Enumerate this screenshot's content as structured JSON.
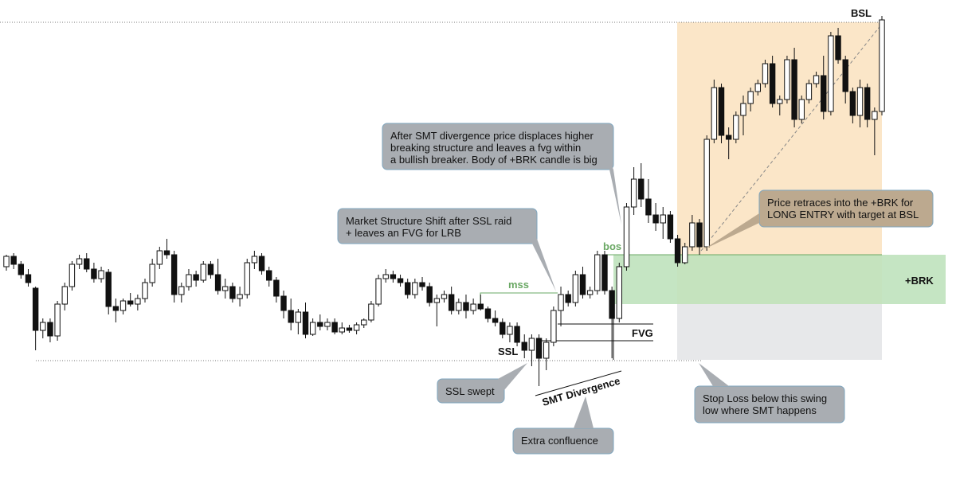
{
  "chart_data": {
    "type": "candlestick",
    "ylim": [
      0,
      600
    ],
    "xlim": [
      0,
      120
    ],
    "up_color": "#ffffff",
    "down_color": "#111111",
    "series": [
      {
        "values": [
          [
            265,
            280,
            260,
            278
          ],
          [
            278,
            282,
            262,
            268
          ],
          [
            268,
            272,
            250,
            255
          ],
          [
            255,
            262,
            240,
            245
          ],
          [
            238,
            240,
            160,
            185
          ],
          [
            185,
            200,
            175,
            195
          ],
          [
            195,
            200,
            170,
            178
          ],
          [
            178,
            222,
            172,
            218
          ],
          [
            218,
            245,
            210,
            240
          ],
          [
            240,
            272,
            235,
            268
          ],
          [
            268,
            280,
            262,
            275
          ],
          [
            275,
            282,
            258,
            262
          ],
          [
            262,
            270,
            245,
            250
          ],
          [
            250,
            265,
            245,
            260
          ],
          [
            258,
            262,
            205,
            215
          ],
          [
            215,
            225,
            195,
            210
          ],
          [
            210,
            225,
            205,
            222
          ],
          [
            222,
            232,
            215,
            218
          ],
          [
            218,
            230,
            210,
            225
          ],
          [
            225,
            250,
            220,
            245
          ],
          [
            245,
            275,
            240,
            268
          ],
          [
            268,
            290,
            262,
            285
          ],
          [
            285,
            300,
            275,
            280
          ],
          [
            280,
            285,
            220,
            230
          ],
          [
            230,
            245,
            220,
            240
          ],
          [
            240,
            262,
            235,
            255
          ],
          [
            255,
            260,
            240,
            248
          ],
          [
            248,
            272,
            245,
            268
          ],
          [
            268,
            272,
            250,
            255
          ],
          [
            255,
            275,
            230,
            235
          ],
          [
            235,
            250,
            225,
            240
          ],
          [
            240,
            245,
            220,
            225
          ],
          [
            225,
            240,
            215,
            230
          ],
          [
            230,
            275,
            225,
            270
          ],
          [
            270,
            285,
            262,
            278
          ],
          [
            278,
            282,
            255,
            260
          ],
          [
            260,
            265,
            240,
            248
          ],
          [
            248,
            252,
            220,
            228
          ],
          [
            228,
            235,
            200,
            210
          ],
          [
            210,
            225,
            185,
            195
          ],
          [
            195,
            212,
            180,
            208
          ],
          [
            208,
            220,
            175,
            180
          ],
          [
            180,
            200,
            178,
            195
          ],
          [
            195,
            205,
            185,
            190
          ],
          [
            190,
            200,
            185,
            195
          ],
          [
            195,
            200,
            180,
            183
          ],
          [
            183,
            195,
            180,
            188
          ],
          [
            188,
            192,
            182,
            185
          ],
          [
            185,
            195,
            180,
            192
          ],
          [
            192,
            200,
            188,
            198
          ],
          [
            198,
            222,
            195,
            218
          ],
          [
            218,
            255,
            215,
            250
          ],
          [
            250,
            262,
            245,
            255
          ],
          [
            255,
            260,
            245,
            250
          ],
          [
            250,
            255,
            240,
            245
          ],
          [
            245,
            250,
            225,
            230
          ],
          [
            230,
            250,
            225,
            245
          ],
          [
            245,
            252,
            235,
            240
          ],
          [
            240,
            245,
            215,
            220
          ],
          [
            220,
            230,
            190,
            225
          ],
          [
            225,
            235,
            220,
            230
          ],
          [
            230,
            240,
            205,
            210
          ],
          [
            210,
            225,
            205,
            220
          ],
          [
            220,
            230,
            200,
            210
          ],
          [
            210,
            225,
            205,
            218
          ],
          [
            218,
            230,
            210,
            212
          ],
          [
            212,
            215,
            195,
            200
          ],
          [
            200,
            210,
            190,
            195
          ],
          [
            195,
            200,
            175,
            180
          ],
          [
            180,
            195,
            170,
            190
          ],
          [
            190,
            195,
            165,
            170
          ],
          [
            170,
            180,
            150,
            160
          ],
          [
            160,
            180,
            140,
            175
          ],
          [
            175,
            180,
            115,
            150
          ],
          [
            150,
            175,
            135,
            170
          ],
          [
            170,
            215,
            165,
            210
          ],
          [
            210,
            240,
            190,
            230
          ],
          [
            230,
            235,
            215,
            220
          ],
          [
            220,
            260,
            215,
            255
          ],
          [
            255,
            265,
            225,
            230
          ],
          [
            230,
            240,
            225,
            235
          ],
          [
            235,
            285,
            230,
            280
          ],
          [
            280,
            285,
            230,
            235
          ],
          [
            235,
            240,
            150,
            200
          ],
          [
            200,
            270,
            195,
            265
          ],
          [
            265,
            345,
            260,
            340
          ],
          [
            340,
            390,
            330,
            375
          ],
          [
            375,
            395,
            340,
            350
          ],
          [
            350,
            375,
            320,
            330
          ],
          [
            330,
            345,
            310,
            320
          ],
          [
            320,
            340,
            300,
            330
          ],
          [
            330,
            335,
            295,
            300
          ],
          [
            300,
            305,
            265,
            270
          ],
          [
            270,
            295,
            268,
            290
          ],
          [
            290,
            330,
            285,
            320
          ],
          [
            320,
            325,
            280,
            290
          ],
          [
            290,
            430,
            285,
            425
          ],
          [
            425,
            500,
            420,
            490
          ],
          [
            490,
            495,
            420,
            430
          ],
          [
            430,
            440,
            400,
            425
          ],
          [
            425,
            460,
            420,
            455
          ],
          [
            455,
            480,
            430,
            470
          ],
          [
            470,
            490,
            460,
            485
          ],
          [
            485,
            500,
            480,
            495
          ],
          [
            495,
            525,
            490,
            520
          ],
          [
            520,
            530,
            465,
            470
          ],
          [
            470,
            480,
            455,
            475
          ],
          [
            475,
            530,
            470,
            525
          ],
          [
            525,
            540,
            440,
            450
          ],
          [
            450,
            480,
            445,
            475
          ],
          [
            475,
            500,
            470,
            495
          ],
          [
            495,
            510,
            490,
            505
          ],
          [
            505,
            530,
            450,
            460
          ],
          [
            460,
            560,
            455,
            555
          ],
          [
            555,
            565,
            520,
            525
          ],
          [
            525,
            530,
            470,
            485
          ],
          [
            485,
            490,
            445,
            455
          ],
          [
            455,
            500,
            440,
            490
          ],
          [
            490,
            495,
            440,
            450
          ],
          [
            450,
            465,
            405,
            460
          ],
          [
            460,
            580,
            455,
            575
          ]
        ]
      }
    ],
    "labels": {
      "bsl": "BSL",
      "mss": "mss",
      "bos": "bos",
      "ssl": "SSL",
      "fvg": "FVG",
      "brk": "+BRK",
      "smt": "SMT Divergence"
    },
    "callouts": [
      {
        "lines": [
          "After SMT divergence price displaces higher",
          "breaking structure and leaves a fvg within",
          "a bullish breaker. Body of +BRK candle is big"
        ]
      },
      {
        "lines": [
          "Market Structure Shift after SSL raid",
          "+ leaves an FVG for LRB"
        ]
      },
      {
        "lines": [
          "Price retraces into the +BRK for",
          "LONG ENTRY with target at BSL"
        ]
      },
      {
        "lines": [
          "SSL swept"
        ]
      },
      {
        "lines": [
          "Extra confluence"
        ]
      },
      {
        "lines": [
          "Stop Loss below this swing",
          "low where SMT happens"
        ]
      }
    ]
  }
}
